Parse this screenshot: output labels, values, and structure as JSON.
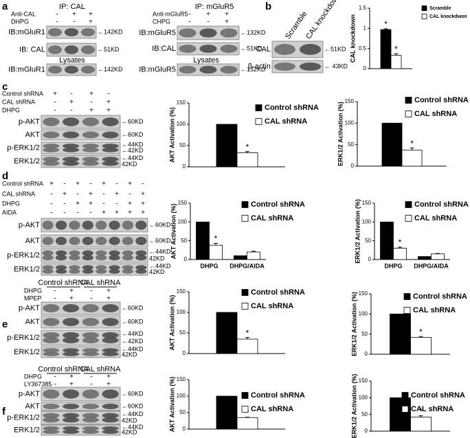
{
  "blots": [
    {
      "letter": "a",
      "title": "IP: CAL",
      "lysates": "Lysates",
      "conditions": [
        {
          "name": "Anti-CAL",
          "signs": [
            "-",
            "+",
            "+"
          ]
        },
        {
          "name": "DHPG",
          "signs": [
            "-",
            "-",
            "+"
          ]
        }
      ],
      "rows": [
        {
          "label": "IB:mGluR1",
          "markers": [
            "←142KD"
          ]
        },
        {
          "label": "IB: CAL",
          "markers": [
            "←51KD"
          ]
        },
        {
          "label": "IB:mGluR1",
          "markers": [
            "←142KD"
          ]
        }
      ]
    },
    {
      "title": "IP: mGluR5",
      "lysates": "Lysates",
      "conditions": [
        {
          "name": "Anti-mGluR5",
          "signs": [
            "-",
            "+",
            "+"
          ]
        },
        {
          "name": "CHPG",
          "signs": [
            "-",
            "-",
            "+"
          ]
        }
      ],
      "rows": [
        {
          "label": "IB:mGluR5",
          "markers": [
            "←132KD"
          ]
        },
        {
          "label": "IB:CAL",
          "markers": [
            "←51KD"
          ]
        },
        {
          "label": "IB:mGluR5",
          "markers": [
            "←132KD"
          ]
        }
      ]
    },
    {
      "letter": "b",
      "columns": [
        "Scramble",
        "CAL knockdown"
      ],
      "rows": [
        {
          "label": "CAL",
          "markers": [
            "←51KD"
          ]
        },
        {
          "label": "β-actin",
          "markers": [
            "← 43KD"
          ]
        }
      ]
    },
    {
      "letter": "c",
      "conditions": [
        {
          "name": "Control shRNA",
          "signs": [
            "+",
            "-",
            "+",
            "-"
          ]
        },
        {
          "name": "CAL shRNA",
          "signs": [
            "-",
            "+",
            "-",
            "+"
          ]
        },
        {
          "name": "DHPG",
          "signs": [
            "-",
            "-",
            "+",
            "+"
          ]
        }
      ],
      "rows": [
        {
          "label": "p-AKT",
          "markers": [
            "←60KD"
          ]
        },
        {
          "label": "AKT",
          "markers": [
            "←60KD"
          ]
        },
        {
          "label": "p-ERK1/2",
          "markers": [
            "←44KD",
            "←42KD"
          ]
        },
        {
          "label": "ERK1/2",
          "markers": [
            "←44KD",
            "42KD"
          ]
        }
      ]
    },
    {
      "letter": "d",
      "conditions": [
        {
          "name": "Control shRNA",
          "signs": [
            "+",
            "-",
            "+",
            "-",
            "+",
            "-",
            "+",
            "-"
          ]
        },
        {
          "name": "CAL shRNA",
          "signs": [
            "-",
            "+",
            "-",
            "+",
            "-",
            "+",
            "-",
            "+"
          ]
        },
        {
          "name": "DHPG",
          "signs": [
            "-",
            "-",
            "+",
            "+",
            "-",
            "-",
            "+",
            "+"
          ]
        },
        {
          "name": "AIDA",
          "signs": [
            "-",
            "-",
            "-",
            "-",
            "+",
            "+",
            "+",
            "+"
          ]
        }
      ],
      "rows": [
        {
          "label": "p-AKT",
          "markers": [
            "←60KD"
          ]
        },
        {
          "label": "AKT",
          "markers": [
            "←60KD"
          ]
        },
        {
          "label": "p-ERK1/2",
          "markers": [
            "←44KD",
            "42KD"
          ]
        },
        {
          "label": "ERK1/2",
          "markers": [
            "←44KD",
            "42KD"
          ]
        }
      ]
    },
    {
      "letter": "e",
      "groups": [
        "Control shRNA",
        "CAL shRNA"
      ],
      "conditions": [
        {
          "name": "DHPG",
          "signs": [
            "-",
            "+",
            "-",
            "+"
          ]
        },
        {
          "name": "MPEP",
          "signs": [
            "-",
            "+",
            "-",
            "+"
          ]
        }
      ],
      "rows": [
        {
          "label": "p-AKT",
          "markers": [
            "←60KD"
          ]
        },
        {
          "label": "AKT",
          "markers": [
            "←60KD"
          ]
        },
        {
          "label": "p-ERK1/2",
          "markers": [
            "←44KD",
            "←42KD"
          ]
        },
        {
          "label": "ERK1/2",
          "markers": [
            "←44KD",
            "42KD"
          ]
        }
      ]
    },
    {
      "letter": "f",
      "groups": [
        "Control shRNA",
        "CAL shRNA"
      ],
      "conditions": [
        {
          "name": "DHPG",
          "signs": [
            "-",
            "+",
            "-",
            "+"
          ]
        },
        {
          "name": "LY367385",
          "signs": [
            "-",
            "+",
            "-",
            "+"
          ]
        }
      ],
      "rows": [
        {
          "label": "p-AKT",
          "markers": [
            "←60KD"
          ]
        },
        {
          "label": "AKT",
          "markers": [
            "←60KD"
          ]
        },
        {
          "label": "p-ERK1/2",
          "markers": [
            "←44KD",
            "42KD"
          ]
        },
        {
          "label": "ERK1/2",
          "markers": [
            "←44KD",
            "42KD"
          ]
        }
      ]
    }
  ],
  "chart_data": [
    {
      "type": "bar",
      "ylabel": "CAL knockdown",
      "categories": [
        null
      ],
      "ylim": [
        0,
        1.5
      ],
      "yticks": [
        0,
        0.5,
        1,
        1.5
      ],
      "annotation": "*",
      "series": [
        {
          "name": "Scramble",
          "color": "#000000",
          "values": [
            0.97
          ],
          "errors": [
            0.02
          ]
        },
        {
          "name": "CAL knockdwon",
          "color": "#ffffff",
          "values": [
            0.33
          ],
          "errors": [
            0.04
          ]
        }
      ]
    },
    {
      "type": "bar",
      "ylabel": "AKT Activation (%)",
      "categories": [
        null
      ],
      "ylim": [
        0,
        150
      ],
      "yticks": [
        0,
        50,
        100,
        150
      ],
      "annotation": "*",
      "series": [
        {
          "name": "Control shRNA",
          "color": "#000000",
          "values": [
            100
          ]
        },
        {
          "name": "CAL shRNA",
          "color": "#ffffff",
          "values": [
            33
          ],
          "errors": [
            3
          ]
        }
      ]
    },
    {
      "type": "bar",
      "ylabel": "ERK1/2 Activation (%)",
      "categories": [
        null
      ],
      "ylim": [
        0,
        150
      ],
      "yticks": [
        0,
        50,
        100,
        150
      ],
      "annotation": "*",
      "series": [
        {
          "name": "Control shRNA",
          "color": "#000000",
          "values": [
            100
          ]
        },
        {
          "name": "CAL shRNA",
          "color": "#ffffff",
          "values": [
            37
          ],
          "errors": [
            5
          ]
        }
      ]
    },
    {
      "type": "bar",
      "ylabel": "AKT Activation (%)",
      "categories": [
        "DHPG",
        "DHPG/AIDA"
      ],
      "ylim": [
        0,
        150
      ],
      "yticks": [
        0,
        50,
        100,
        150
      ],
      "annotation": "*",
      "series": [
        {
          "name": "Control shRNA",
          "color": "#000000",
          "values": [
            100,
            10
          ]
        },
        {
          "name": "CAL shRNA",
          "color": "#ffffff",
          "values": [
            38,
            20
          ],
          "errors": [
            5,
            2
          ]
        }
      ]
    },
    {
      "type": "bar",
      "ylabel": "ERK1/2 Activation (%)",
      "categories": [
        "DHPG",
        "DHPG/AIDA"
      ],
      "ylim": [
        0,
        150
      ],
      "yticks": [
        0,
        50,
        100,
        150
      ],
      "annotation": "*",
      "series": [
        {
          "name": "Control shRNA",
          "color": "#000000",
          "values": [
            100,
            8
          ]
        },
        {
          "name": "CAL shRNA",
          "color": "#ffffff",
          "values": [
            30,
            15
          ],
          "errors": [
            3,
            1
          ]
        }
      ]
    },
    {
      "type": "bar",
      "ylabel": "AKT Activation (%)",
      "categories": [
        null
      ],
      "ylim": [
        0,
        150
      ],
      "yticks": [
        0,
        50,
        100,
        150
      ],
      "annotation": "*",
      "series": [
        {
          "name": "Control shRNA",
          "color": "#000000",
          "values": [
            100
          ]
        },
        {
          "name": "CAL shRNA",
          "color": "#ffffff",
          "values": [
            35
          ],
          "errors": [
            4
          ]
        }
      ]
    },
    {
      "type": "bar",
      "ylabel": "ERK1/2 Activation (%)",
      "categories": [
        null
      ],
      "ylim": [
        0,
        150
      ],
      "yticks": [
        0,
        50,
        100,
        150
      ],
      "annotation": "*",
      "series": [
        {
          "name": "Control shRNA",
          "color": "#000000",
          "values": [
            100
          ]
        },
        {
          "name": "CAL shRNA",
          "color": "#ffffff",
          "values": [
            42
          ],
          "errors": [
            2
          ]
        }
      ]
    },
    {
      "type": "bar",
      "ylabel": "AKT Activation (%)",
      "categories": [
        null
      ],
      "ylim": [
        0,
        150
      ],
      "yticks": [
        0,
        50,
        100,
        150
      ],
      "annotation": "*",
      "series": [
        {
          "name": "Control shRNA",
          "color": "#000000",
          "values": [
            100
          ]
        },
        {
          "name": "CAL shRNA",
          "color": "#ffffff",
          "values": [
            35
          ],
          "errors": [
            1
          ]
        }
      ]
    },
    {
      "type": "bar",
      "ylabel": "ERK1/2 Activation (%)",
      "categories": [
        null
      ],
      "ylim": [
        0,
        150
      ],
      "yticks": [
        0,
        50,
        100,
        150
      ],
      "annotation": "*",
      "series": [
        {
          "name": "Control shRNA",
          "color": "#000000",
          "values": [
            100
          ]
        },
        {
          "name": "CAL shRNA",
          "color": "#ffffff",
          "values": [
            42
          ],
          "errors": [
            4
          ]
        }
      ]
    }
  ]
}
